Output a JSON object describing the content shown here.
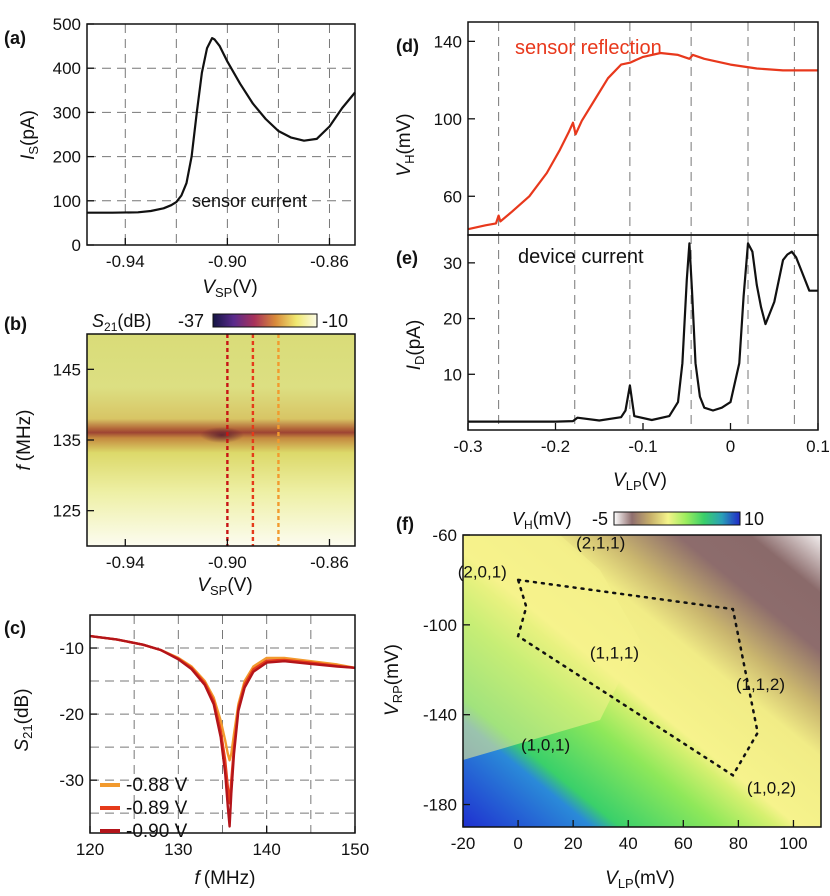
{
  "chart_data": [
    {
      "id": "a",
      "panel": "(a)",
      "type": "line",
      "xlabel_main": "V",
      "xlabel_sub": "SP",
      "xlabel_unit": "(V)",
      "ylabel_main": "I",
      "ylabel_sub": "S",
      "ylabel_unit": "(pA)",
      "xlim": [
        -0.955,
        -0.85
      ],
      "ylim": [
        0,
        500
      ],
      "xticks": [
        -0.94,
        -0.9,
        -0.86
      ],
      "xtick_labels": [
        "-0.94",
        "-0.90",
        "-0.86"
      ],
      "yticks": [
        0,
        100,
        200,
        300,
        400,
        500
      ],
      "ytick_labels": [
        "0",
        "100",
        "200",
        "300",
        "400",
        "500"
      ],
      "grid_x": [
        -0.94,
        -0.92,
        -0.9,
        -0.88,
        -0.86
      ],
      "grid_y": [
        100,
        200,
        300,
        400
      ],
      "annotation": "sensor current",
      "series": [
        {
          "name": "sensor current",
          "color": "#111111",
          "x": [
            -0.955,
            -0.945,
            -0.935,
            -0.93,
            -0.925,
            -0.922,
            -0.92,
            -0.918,
            -0.916,
            -0.914,
            -0.912,
            -0.91,
            -0.908,
            -0.906,
            -0.905,
            -0.903,
            -0.9,
            -0.895,
            -0.89,
            -0.885,
            -0.88,
            -0.875,
            -0.87,
            -0.865,
            -0.86,
            -0.855,
            -0.85
          ],
          "y": [
            73,
            73,
            74,
            77,
            83,
            90,
            97,
            112,
            140,
            200,
            300,
            390,
            445,
            468,
            465,
            450,
            415,
            365,
            320,
            285,
            258,
            243,
            236,
            240,
            268,
            310,
            345
          ]
        }
      ]
    },
    {
      "id": "b",
      "panel": "(b)",
      "type": "heatmap",
      "xlabel_main": "V",
      "xlabel_sub": "SP",
      "xlabel_unit": "(V)",
      "ylabel_main": "f",
      "ylabel_unit": "(MHz)",
      "xlim": [
        -0.955,
        -0.85
      ],
      "ylim": [
        120,
        150
      ],
      "xticks": [
        -0.94,
        -0.9,
        -0.86
      ],
      "xtick_labels": [
        "-0.94",
        "-0.90",
        "-0.86"
      ],
      "yticks": [
        125,
        135,
        145
      ],
      "ytick_labels": [
        "125",
        "135",
        "145"
      ],
      "resonance_MHz": 135.8,
      "colorbar": {
        "label_main": "S",
        "label_sub": "21",
        "label_unit": "(dB)",
        "min_label": "-37",
        "max_label": "-10",
        "colors": [
          "#151545",
          "#5a2a8c",
          "#a8325a",
          "#d88a3a",
          "#f0e870",
          "#fbfbe6"
        ]
      },
      "markers": [
        {
          "value": -0.9,
          "color": "#c81414"
        },
        {
          "value": -0.89,
          "color": "#e53a1a"
        },
        {
          "value": -0.88,
          "color": "#f29a2e"
        }
      ]
    },
    {
      "id": "c",
      "panel": "(c)",
      "type": "line",
      "xlabel_main": "f",
      "xlabel_unit": "(MHz)",
      "ylabel_main": "S",
      "ylabel_sub": "21",
      "ylabel_unit": "(dB)",
      "xlim": [
        120,
        150
      ],
      "ylim": [
        -38,
        -5
      ],
      "xticks": [
        120,
        130,
        140,
        150
      ],
      "xtick_labels": [
        "120",
        "130",
        "140",
        "150"
      ],
      "yticks": [
        -30,
        -20,
        -10
      ],
      "ytick_labels": [
        "-30",
        "-20",
        "-10"
      ],
      "grid_x": [
        125,
        130,
        135,
        140,
        145
      ],
      "grid_y": [
        -35,
        -30,
        -25,
        -20,
        -15,
        -10
      ],
      "legend": [
        "-0.88 V",
        "-0.89 V",
        "-0.90 V"
      ],
      "series": [
        {
          "name": "-0.88 V",
          "color": "#f29a2e",
          "x": [
            120,
            123,
            126,
            128,
            130,
            131.5,
            133,
            134,
            134.8,
            135.3,
            135.6,
            135.8,
            136.0,
            136.3,
            136.8,
            137.5,
            138.5,
            140,
            142,
            145,
            148,
            150
          ],
          "y": [
            -8.2,
            -8.7,
            -9.5,
            -10.3,
            -11.5,
            -12.8,
            -15.0,
            -17.5,
            -21,
            -24,
            -26,
            -27,
            -26,
            -23,
            -18.5,
            -15,
            -12.8,
            -11.5,
            -11.5,
            -12,
            -12.5,
            -13
          ]
        },
        {
          "name": "-0.89 V",
          "color": "#e53a1a",
          "x": [
            120,
            123,
            126,
            128,
            130,
            131.5,
            133,
            134,
            134.8,
            135.3,
            135.6,
            135.8,
            136.0,
            136.3,
            136.8,
            137.5,
            138.5,
            140,
            142,
            145,
            148,
            150
          ],
          "y": [
            -8.2,
            -8.7,
            -9.5,
            -10.3,
            -11.6,
            -13.0,
            -15.3,
            -18,
            -22.5,
            -27,
            -31,
            -33.5,
            -30,
            -25,
            -19,
            -15.5,
            -13.2,
            -11.9,
            -11.8,
            -12.2,
            -12.7,
            -13
          ]
        },
        {
          "name": "-0.90 V",
          "color": "#b3141a",
          "x": [
            120,
            123,
            126,
            128,
            130,
            131.5,
            133,
            134,
            134.8,
            135.3,
            135.6,
            135.8,
            136.0,
            136.3,
            136.8,
            137.5,
            138.5,
            140,
            142,
            145,
            148,
            150
          ],
          "y": [
            -8.2,
            -8.7,
            -9.5,
            -10.3,
            -11.7,
            -13.2,
            -15.6,
            -18.5,
            -23.5,
            -29,
            -34,
            -37,
            -32,
            -26,
            -19.5,
            -16,
            -13.6,
            -12.2,
            -12,
            -12.4,
            -12.8,
            -13
          ]
        }
      ]
    },
    {
      "id": "d",
      "panel": "(d)",
      "type": "line",
      "ylabel_main": "V",
      "ylabel_sub": "H",
      "ylabel_unit": "(mV)",
      "xlim": [
        -0.3,
        0.1
      ],
      "ylim": [
        40,
        150
      ],
      "yticks": [
        60,
        100,
        140
      ],
      "ytick_labels": [
        "60",
        "100",
        "140"
      ],
      "grid_x": [
        -0.265,
        -0.178,
        -0.115,
        -0.045,
        0.02,
        0.073
      ],
      "annotation": "sensor reflection",
      "series": [
        {
          "name": "sensor reflection",
          "color": "#e8381c",
          "x": [
            -0.3,
            -0.28,
            -0.268,
            -0.265,
            -0.263,
            -0.25,
            -0.23,
            -0.21,
            -0.195,
            -0.185,
            -0.18,
            -0.177,
            -0.17,
            -0.155,
            -0.14,
            -0.125,
            -0.115,
            -0.1,
            -0.08,
            -0.06,
            -0.047,
            -0.043,
            -0.03,
            0.0,
            0.03,
            0.06,
            0.08,
            0.1
          ],
          "y": [
            43,
            45,
            46,
            50,
            47,
            52,
            60,
            72,
            84,
            93,
            98,
            92,
            99,
            110,
            121,
            128,
            129,
            132,
            134,
            133,
            131,
            133,
            131,
            128,
            126,
            125,
            125,
            125
          ]
        }
      ]
    },
    {
      "id": "e",
      "panel": "(e)",
      "type": "line",
      "xlabel_main": "V",
      "xlabel_sub": "LP",
      "xlabel_unit": "(V)",
      "ylabel_main": "I",
      "ylabel_sub": "D",
      "ylabel_unit": "(pA)",
      "xlim": [
        -0.3,
        0.1
      ],
      "ylim": [
        0,
        35
      ],
      "xticks": [
        -0.3,
        -0.2,
        -0.1,
        0,
        0.1
      ],
      "xtick_labels": [
        "-0.3",
        "-0.2",
        "-0.1",
        "0",
        "0.1"
      ],
      "yticks": [
        10,
        20,
        30
      ],
      "ytick_labels": [
        "10",
        "20",
        "30"
      ],
      "grid_x": [
        -0.265,
        -0.178,
        -0.115,
        -0.045,
        0.02,
        0.073
      ],
      "annotation": "device current",
      "series": [
        {
          "name": "device current",
          "color": "#111111",
          "x": [
            -0.3,
            -0.25,
            -0.2,
            -0.18,
            -0.175,
            -0.15,
            -0.125,
            -0.12,
            -0.115,
            -0.11,
            -0.09,
            -0.07,
            -0.06,
            -0.055,
            -0.05,
            -0.047,
            -0.044,
            -0.04,
            -0.035,
            -0.03,
            -0.02,
            -0.01,
            0.0,
            0.01,
            0.015,
            0.02,
            0.025,
            0.03,
            0.035,
            0.04,
            0.05,
            0.06,
            0.065,
            0.07,
            0.075,
            0.08,
            0.09,
            0.1
          ],
          "y": [
            1.5,
            1.5,
            1.5,
            1.6,
            2.2,
            1.7,
            2.3,
            3.5,
            8,
            2.5,
            1.8,
            2.5,
            5,
            12,
            27,
            33.5,
            25,
            12,
            6,
            4,
            3.5,
            4,
            5,
            12,
            24,
            33.5,
            32,
            26,
            22,
            19,
            23,
            30.5,
            31.5,
            32,
            31,
            29,
            25,
            25
          ]
        }
      ]
    },
    {
      "id": "f",
      "panel": "(f)",
      "type": "heatmap",
      "xlabel_main": "V",
      "xlabel_sub": "LP",
      "xlabel_unit": "(mV)",
      "ylabel_main": "V",
      "ylabel_sub": "RP",
      "ylabel_unit": "(mV)",
      "xlim": [
        -20,
        110
      ],
      "ylim": [
        -190,
        -60
      ],
      "xticks": [
        -20,
        0,
        20,
        40,
        60,
        80,
        100
      ],
      "xtick_labels": [
        "-20",
        "0",
        "20",
        "40",
        "60",
        "80",
        "100"
      ],
      "yticks": [
        -60,
        -100,
        -140,
        -180
      ],
      "ytick_labels": [
        "-60",
        "-100",
        "-140",
        "-180"
      ],
      "colorbar": {
        "label_main": "V",
        "label_sub": "H",
        "label_unit": "(mV)",
        "min_label": "-5",
        "max_label": "10",
        "colors": [
          "#ffffff",
          "#8f6e6e",
          "#c6ae6a",
          "#f4f48a",
          "#9ced5e",
          "#3ad06a",
          "#2aa0b8",
          "#2028c8"
        ]
      },
      "charge_states": [
        {
          "label": "(2,1,1)",
          "x": 30,
          "y": -66
        },
        {
          "label": "(2,0,1)",
          "x": -13,
          "y": -79
        },
        {
          "label": "(1,1,1)",
          "x": 35,
          "y": -115
        },
        {
          "label": "(1,1,2)",
          "x": 88,
          "y": -129
        },
        {
          "label": "(1,0,1)",
          "x": 10,
          "y": -156
        },
        {
          "label": "(1,0,2)",
          "x": 92,
          "y": -175
        }
      ],
      "dotted_region": {
        "x": [
          0,
          78,
          87,
          78,
          0,
          3,
          0
        ],
        "y": [
          -80,
          -93,
          -148,
          -167,
          -105,
          -92,
          -80
        ]
      }
    }
  ]
}
